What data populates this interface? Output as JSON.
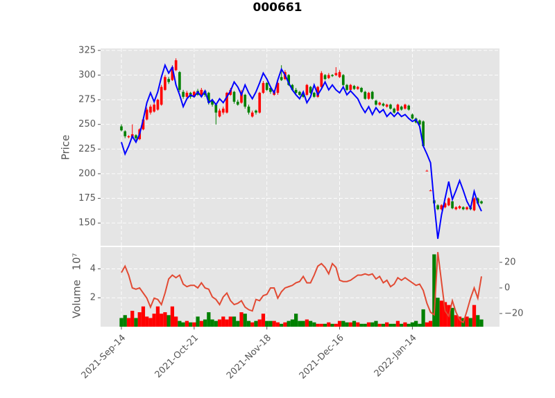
{
  "chart_data": [
    {
      "type": "candlestick",
      "title": "000661",
      "y_label": "Price",
      "up_color": "#ff0000",
      "down_color": "#008000",
      "grid": true,
      "ylim": [
        127,
        327
      ],
      "yticks": [
        150,
        175,
        200,
        225,
        250,
        275,
        300,
        325
      ],
      "open": [
        248,
        243,
        237,
        237,
        239,
        235,
        245,
        255,
        262,
        263,
        265,
        270,
        285,
        296,
        295,
        305,
        303,
        283,
        278,
        282,
        278,
        284,
        280,
        284,
        282,
        274,
        270,
        258,
        262,
        262,
        280,
        283,
        273,
        272,
        280,
        268,
        258,
        264,
        262,
        282,
        292,
        287,
        280,
        282,
        298,
        296,
        300,
        290,
        285,
        283,
        282,
        280,
        288,
        282,
        278,
        288,
        300,
        297,
        300,
        300,
        298,
        300,
        290,
        285,
        289,
        286,
        287,
        283,
        276,
        283,
        274,
        270,
        271,
        268,
        270,
        266,
        264,
        268,
        266,
        269,
        260,
        256,
        254,
        253,
        203,
        183,
        173,
        168,
        164,
        166,
        168,
        172,
        164,
        165,
        166,
        164,
        166,
        163,
        175,
        172
      ],
      "high": [
        250,
        244,
        239,
        250,
        240,
        246,
        257,
        267,
        270,
        272,
        276,
        290,
        300,
        298,
        310,
        317,
        304,
        285,
        284,
        283,
        284,
        286,
        287,
        285,
        283,
        276,
        271,
        266,
        268,
        283,
        287,
        284,
        275,
        285,
        281,
        270,
        264,
        265,
        283,
        294,
        293,
        288,
        285,
        293,
        310,
        305,
        301,
        291,
        287,
        284,
        283,
        291,
        289,
        283,
        289,
        304,
        301,
        302,
        301,
        308,
        305,
        301,
        291,
        291,
        290,
        289,
        288,
        284,
        283,
        284,
        275,
        273,
        272,
        271,
        271,
        267,
        271,
        269,
        271,
        270,
        261,
        257,
        255,
        254,
        204,
        184,
        174,
        169,
        169,
        171,
        176,
        173,
        167,
        168,
        167,
        167,
        167,
        176,
        176,
        173
      ],
      "low": [
        243,
        236,
        236,
        236,
        234,
        234,
        244,
        254,
        260,
        262,
        264,
        269,
        284,
        291,
        294,
        304,
        283,
        276,
        277,
        276,
        277,
        279,
        279,
        278,
        270,
        268,
        250,
        257,
        260,
        261,
        279,
        271,
        269,
        271,
        266,
        260,
        257,
        260,
        261,
        281,
        284,
        281,
        279,
        280,
        294,
        295,
        289,
        284,
        281,
        279,
        277,
        279,
        281,
        277,
        277,
        287,
        295,
        296,
        298,
        299,
        297,
        289,
        284,
        284,
        285,
        285,
        282,
        275,
        275,
        275,
        269,
        269,
        268,
        267,
        265,
        261,
        263,
        264,
        265,
        264,
        255,
        251,
        249,
        227,
        203,
        183,
        169,
        163,
        163,
        165,
        167,
        164,
        163,
        164,
        163,
        163,
        163,
        162,
        169,
        169
      ],
      "close": [
        244,
        238,
        238,
        240,
        236,
        245,
        255,
        265,
        268,
        270,
        275,
        288,
        298,
        293,
        308,
        315,
        285,
        278,
        282,
        278,
        283,
        280,
        285,
        280,
        272,
        270,
        262,
        264,
        266,
        282,
        285,
        273,
        270,
        283,
        268,
        262,
        262,
        262,
        282,
        292,
        285,
        283,
        283,
        292,
        295,
        303,
        290,
        285,
        282,
        280,
        278,
        290,
        282,
        278,
        288,
        302,
        296,
        300,
        299,
        302,
        303,
        290,
        285,
        290,
        286,
        288,
        283,
        276,
        282,
        276,
        270,
        272,
        269,
        270,
        266,
        262,
        270,
        265,
        270,
        265,
        256,
        252,
        250,
        228,
        203,
        183,
        170,
        164,
        168,
        170,
        175,
        165,
        166,
        167,
        164,
        166,
        164,
        175,
        170,
        170
      ],
      "series": [
        {
          "color": "#0000ff",
          "values": [
            232,
            220,
            228,
            238,
            232,
            240,
            255,
            272,
            282,
            273,
            283,
            298,
            310,
            302,
            308,
            290,
            280,
            268,
            276,
            280,
            278,
            283,
            278,
            284,
            272,
            275,
            270,
            276,
            272,
            278,
            284,
            293,
            288,
            280,
            290,
            282,
            276,
            283,
            292,
            302,
            296,
            288,
            282,
            295,
            306,
            300,
            292,
            285,
            280,
            276,
            283,
            272,
            278,
            290,
            280,
            286,
            293,
            285,
            290,
            285,
            282,
            288,
            280,
            284,
            280,
            276,
            268,
            262,
            268,
            260,
            267,
            262,
            265,
            258,
            262,
            258,
            262,
            258,
            260,
            256,
            253,
            255,
            248,
            228,
            220,
            211,
            170,
            134,
            158,
            175,
            192,
            174,
            183,
            193,
            183,
            172,
            165,
            182,
            170,
            162
          ]
        }
      ]
    },
    {
      "type": "bar",
      "y_label": "Volume",
      "y_offset_label": "10⁷",
      "grid": true,
      "categories": [
        "2021-Sep-14",
        null,
        null,
        null,
        null,
        null,
        null,
        null,
        null,
        null,
        null,
        null,
        null,
        null,
        null,
        null,
        null,
        null,
        null,
        null,
        "2021-Oct-21",
        null,
        null,
        null,
        null,
        null,
        null,
        null,
        null,
        null,
        null,
        null,
        null,
        null,
        null,
        null,
        null,
        null,
        null,
        null,
        "2021-Nov-18",
        null,
        null,
        null,
        null,
        null,
        null,
        null,
        null,
        null,
        null,
        null,
        null,
        null,
        null,
        null,
        null,
        null,
        null,
        null,
        "2021-Dec-16",
        null,
        null,
        null,
        null,
        null,
        null,
        null,
        null,
        null,
        null,
        null,
        null,
        null,
        null,
        null,
        null,
        null,
        null,
        null,
        "2022-Jan-14",
        null,
        null,
        null,
        null,
        null,
        null,
        null,
        null,
        null,
        null,
        null,
        null,
        null,
        null,
        null,
        null,
        null,
        null,
        null
      ],
      "values": [
        0.6,
        0.8,
        0.6,
        1.1,
        0.6,
        1.0,
        1.4,
        0.7,
        0.6,
        0.9,
        1.4,
        0.9,
        1.0,
        0.8,
        1.4,
        0.7,
        0.4,
        0.3,
        0.4,
        0.3,
        0.3,
        0.7,
        0.4,
        0.5,
        1.0,
        0.5,
        0.4,
        0.5,
        0.7,
        0.5,
        0.7,
        0.7,
        0.4,
        1.0,
        0.9,
        0.4,
        0.3,
        0.4,
        0.5,
        0.9,
        0.4,
        0.4,
        0.4,
        0.3,
        0.2,
        0.3,
        0.4,
        0.5,
        0.9,
        0.4,
        0.4,
        0.5,
        0.4,
        0.3,
        0.2,
        0.2,
        0.2,
        0.3,
        0.2,
        0.2,
        0.4,
        0.4,
        0.3,
        0.3,
        0.4,
        0.3,
        0.2,
        0.2,
        0.3,
        0.3,
        0.4,
        0.2,
        0.2,
        0.3,
        0.2,
        0.2,
        0.4,
        0.2,
        0.3,
        0.2,
        0.3,
        0.4,
        0.2,
        1.2,
        0.3,
        0.4,
        5.0,
        2.0,
        1.8,
        1.7,
        1.5,
        1.3,
        0.8,
        0.7,
        0.6,
        0.7,
        0.6,
        1.5,
        0.8,
        0.5
      ],
      "ylim": [
        0,
        5.5
      ],
      "yticks": [
        2,
        4
      ],
      "y2lim": [
        -30.3,
        31.9
      ],
      "y2ticks": [
        20,
        0,
        {
          "value": -20,
          "label": "−20"
        }
      ],
      "series": [
        {
          "color": "#e24a33",
          "axis": "y2",
          "values": [
            12,
            17,
            10,
            0,
            -1,
            0,
            -4,
            -8,
            -15,
            -8,
            -9,
            -13,
            -4,
            7,
            10,
            8,
            10,
            3,
            1,
            2,
            2,
            0,
            4,
            0,
            -1,
            -7,
            -9,
            -13,
            -7,
            -4,
            -10,
            -13,
            -12,
            -10,
            -15,
            -17,
            -18,
            -9,
            -10,
            -6,
            -5,
            0,
            0,
            -8,
            -3,
            0,
            1,
            2,
            4,
            5,
            9,
            4,
            4,
            10,
            17,
            19,
            16,
            11,
            19,
            16,
            6,
            5,
            5,
            6,
            8,
            10,
            10,
            11,
            10,
            11,
            7,
            9,
            4,
            6,
            1,
            3,
            8,
            6,
            8,
            6,
            4,
            2,
            3,
            -2,
            -12,
            -19,
            -21,
            28,
            5,
            -18,
            -22,
            -10,
            -19,
            -25,
            -27,
            -18,
            -8,
            0,
            -8,
            9
          ]
        }
      ]
    }
  ]
}
